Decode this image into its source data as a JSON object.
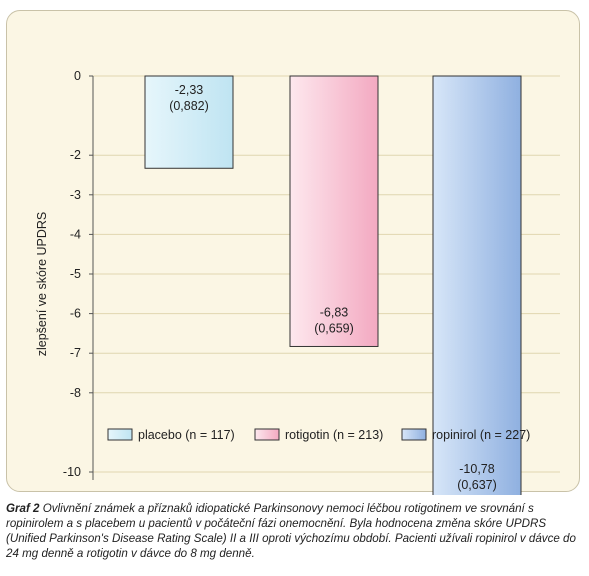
{
  "chart_data": {
    "type": "bar",
    "categories": [
      "placebo",
      "rotigotin",
      "ropinirol"
    ],
    "values": [
      -2.33,
      -6.83,
      -10.78
    ],
    "value_labels": [
      "-2,33",
      "-6,83",
      "-10,78"
    ],
    "se_labels": [
      "(0,882)",
      "(0,659)",
      "(0,637)"
    ],
    "legend": [
      "placebo (n = 117)",
      "rotigotin (n = 213)",
      "ropinirol (n = 227)"
    ],
    "yticks": [
      0,
      -2,
      -3,
      -4,
      -5,
      -6,
      -7,
      -8,
      -10
    ],
    "ytick_labels": [
      "0",
      "-2",
      "-3",
      "-4",
      "-5",
      "-6",
      "-7",
      "-8",
      "-10"
    ],
    "ylabel": "zlepšení ve skóre UPDRS",
    "xlabel": "",
    "title": "",
    "ylim": [
      -10,
      0
    ],
    "grid": true,
    "legend_position": "bottom",
    "colors": {
      "placebo": [
        "#e6f6fb",
        "#bfe4f2"
      ],
      "rotigotin": [
        "#fde8ee",
        "#f3a9c1"
      ],
      "ropinirol": [
        "#d7e6f8",
        "#8fb0e0"
      ],
      "frame_background": "#fbf6e4"
    }
  },
  "caption": {
    "lead": "Graf 2",
    "text": " Ovlivnění známek a příznaků idiopatické Parkinsonovy nemoci léčbou rotigotinem ve srovnání s ropinirolem a s placebem u pacientů v počáteční fázi onemocnění. Byla hodnocena změna skóre UPDRS (Unified Parkinson's Disease Rating Scale) II a III oproti výchozímu období. Pacienti užívali ropinirol v dávce do 24 mg denně a rotigotin v dávce do 8 mg denně."
  }
}
